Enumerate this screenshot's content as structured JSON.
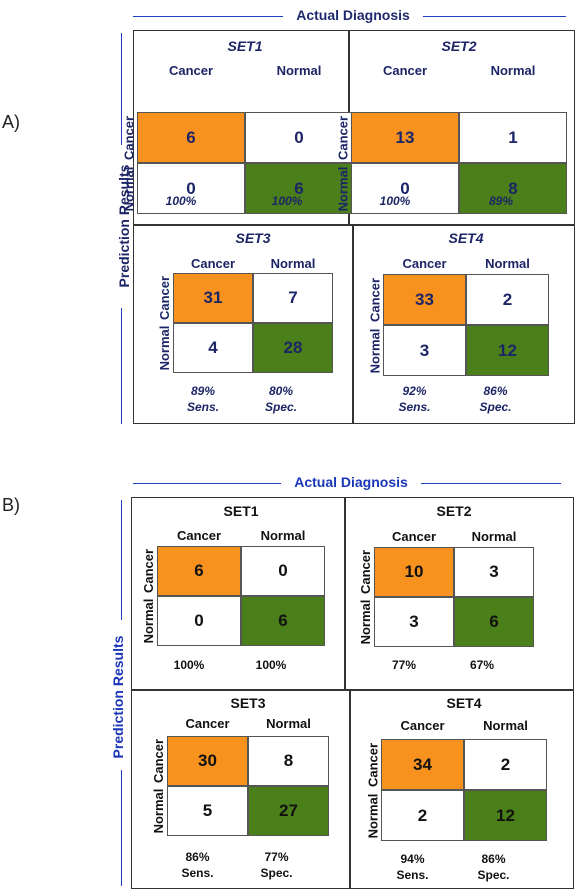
{
  "panel_a": {
    "label": "A)",
    "actual_title": "Actual Diagnosis",
    "prediction_title": "Prediction Results",
    "sets": [
      {
        "title": "SET1",
        "col_cancer": "Cancer",
        "col_normal": "Normal",
        "row_cancer": "Cancer",
        "row_normal": "Normal",
        "tp": "6",
        "fp": "0",
        "fn": "0",
        "tn": "6",
        "sens": "100%",
        "spec": "100%",
        "sens_label": "",
        "spec_label": ""
      },
      {
        "title": "SET2",
        "col_cancer": "Cancer",
        "col_normal": "Normal",
        "row_cancer": "Cancer",
        "row_normal": "Normal",
        "tp": "13",
        "fp": "1",
        "fn": "0",
        "tn": "8",
        "sens": "100%",
        "spec": "89%",
        "sens_label": "",
        "spec_label": ""
      },
      {
        "title": "SET3",
        "col_cancer": "Cancer",
        "col_normal": "Normal",
        "row_cancer": "Cancer",
        "row_normal": "Normal",
        "tp": "31",
        "fp": "7",
        "fn": "4",
        "tn": "28",
        "sens": "89%",
        "spec": "80%",
        "sens_label": "Sens.",
        "spec_label": "Spec."
      },
      {
        "title": "SET4",
        "col_cancer": "Cancer",
        "col_normal": "Normal",
        "row_cancer": "Cancer",
        "row_normal": "Normal",
        "tp": "33",
        "fp": "2",
        "fn": "3",
        "tn": "12",
        "sens": "92%",
        "spec": "86%",
        "sens_label": "Sens.",
        "spec_label": "Spec."
      }
    ]
  },
  "panel_b": {
    "label": "B)",
    "actual_title": "Actual Diagnosis",
    "prediction_title": "Prediction Results",
    "sets": [
      {
        "title": "SET1",
        "col_cancer": "Cancer",
        "col_normal": "Normal",
        "row_cancer": "Cancer",
        "row_normal": "Normal",
        "tp": "6",
        "fp": "0",
        "fn": "0",
        "tn": "6",
        "sens": "100%",
        "spec": "100%",
        "sens_label": "",
        "spec_label": ""
      },
      {
        "title": "SET2",
        "col_cancer": "Cancer",
        "col_normal": "Normal",
        "row_cancer": "Cancer",
        "row_normal": "Normal",
        "tp": "10",
        "fp": "3",
        "fn": "3",
        "tn": "6",
        "sens": "77%",
        "spec": "67%",
        "sens_label": "",
        "spec_label": ""
      },
      {
        "title": "SET3",
        "col_cancer": "Cancer",
        "col_normal": "Normal",
        "row_cancer": "Cancer",
        "row_normal": "Normal",
        "tp": "30",
        "fp": "8",
        "fn": "5",
        "tn": "27",
        "sens": "86%",
        "spec": "77%",
        "sens_label": "Sens.",
        "spec_label": "Spec."
      },
      {
        "title": "SET4",
        "col_cancer": "Cancer",
        "col_normal": "Normal",
        "row_cancer": "Cancer",
        "row_normal": "Normal",
        "tp": "34",
        "fp": "2",
        "fn": "2",
        "tn": "12",
        "sens": "94%",
        "spec": "86%",
        "sens_label": "Sens.",
        "spec_label": "Spec."
      }
    ]
  },
  "colors": {
    "true_positive": "#f7921e",
    "true_negative": "#4a7f1a",
    "axis_line": "#1f3fbf"
  }
}
